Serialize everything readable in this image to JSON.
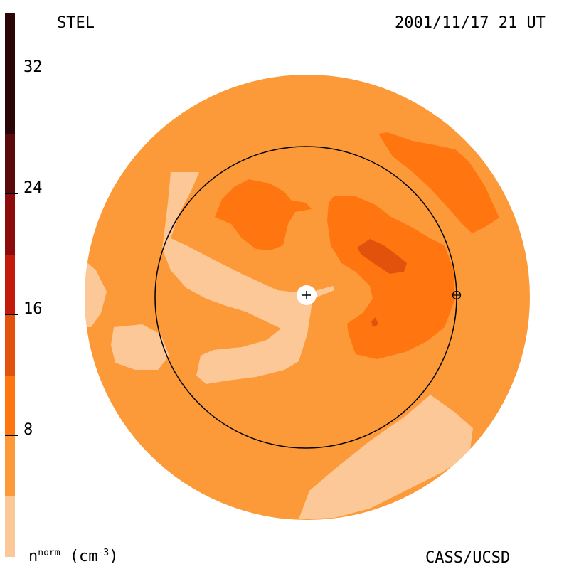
{
  "header": {
    "observatory": "STEL",
    "timestamp": "2001/11/17 21 UT"
  },
  "footer": {
    "credit": "CASS/UCSD"
  },
  "colorbar": {
    "unit_base": "n",
    "unit_sup": "norm",
    "unit_paren": "(cm",
    "unit_exp": "-3",
    "unit_close": ")",
    "ticks": [
      "32",
      "24",
      "16",
      "8"
    ],
    "segments": [
      "#2a0606",
      "#5a0a0a",
      "#8c0b0b",
      "#c41a0b",
      "#e2520c",
      "#ff7610",
      "#fc9a3a",
      "#fdc898"
    ]
  },
  "map": {
    "background_color": "#fc9a3a",
    "levels": {
      "low": "#fdc898",
      "mid": "#ff7610",
      "high": "#e2520c"
    },
    "markers": [
      "sun-marker",
      "earth-marker"
    ]
  }
}
